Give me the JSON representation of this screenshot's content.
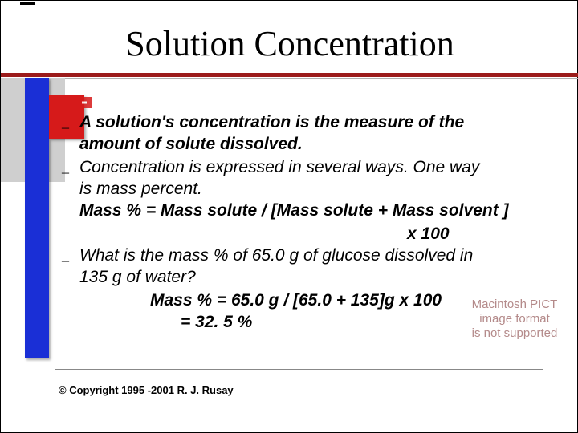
{
  "title": "Solution Concentration",
  "colors": {
    "accent_red": "#9b1b1b",
    "sidebar_blue": "#1a2fd6",
    "sidebar_red": "#d61a1a",
    "sidebar_grey": "#cfcfcf",
    "background": "#ffffff",
    "text": "#000000",
    "placeholder_text": "#b48a8a"
  },
  "fonts": {
    "title_family": "Times New Roman",
    "title_size_pt": 33,
    "body_family": "Arial",
    "body_size_pt": 16,
    "body_style": "italic"
  },
  "bullet_glyph": "_",
  "bullets": {
    "b1_l1": "A solution's concentration is the measure of the",
    "b1_l2": "amount of solute dissolved.",
    "b2_l1": "Concentration is expressed in several ways. One way",
    "b2_l2": "is mass percent.",
    "b2_l3": "Mass % = Mass solute / [Mass solute + Mass solvent ]",
    "b2_l4": "x 100",
    "b3_l1": "What is the mass % of 65.0 g of glucose dissolved in",
    "b3_l2": "135 g of water?",
    "b3_l3": "Mass % = 65.0 g / [65.0 + 135]g x 100",
    "b3_l4": "= 32. 5 %"
  },
  "placeholder": {
    "l1": "Macintosh PICT",
    "l2": "image format",
    "l3": "is not supported"
  },
  "copyright": "© Copyright 1995 -2001 R. J. Rusay"
}
